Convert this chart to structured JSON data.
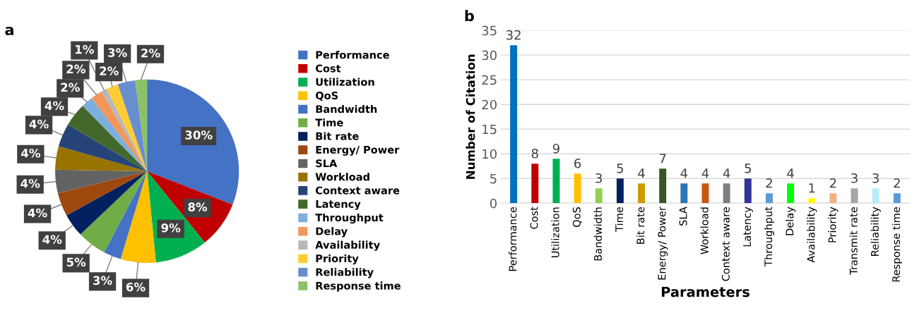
{
  "chart_data": [
    {
      "type": "pie",
      "title": "a",
      "categories": [
        "Performance",
        "Cost",
        "Utilization",
        "QoS",
        "Bandwidth",
        "Time",
        "Bit rate",
        "Energy/ Power",
        "SLA",
        "Workload",
        "Context aware",
        "Latency",
        "Throughput",
        "Delay",
        "Availability",
        "Priority",
        "Reliability",
        "Response time"
      ],
      "values": [
        30,
        8,
        9,
        6,
        3,
        5,
        4,
        4,
        4,
        4,
        4,
        4,
        2,
        2,
        1,
        2,
        3,
        2
      ],
      "value_labels": [
        "30%",
        "8%",
        "9%",
        "6%",
        "3%",
        "5%",
        "4%",
        "4%",
        "4%",
        "4%",
        "4%",
        "4%",
        "2%",
        "2%",
        "1%",
        "2%",
        "3%",
        "2%"
      ],
      "colors": [
        "#4472c4",
        "#c00000",
        "#00b050",
        "#ffc000",
        "#4472c4",
        "#70ad47",
        "#002060",
        "#9e480e",
        "#636363",
        "#997300",
        "#264478",
        "#43682b",
        "#7cafdd",
        "#f1975a",
        "#b7b7b7",
        "#ffcd33",
        "#698ed0",
        "#8cc168"
      ],
      "legend": "right"
    },
    {
      "type": "bar",
      "title": "b",
      "xlabel": "Parameters",
      "ylabel": "Number of Citation",
      "categories": [
        "Performance",
        "Cost",
        "Utilization",
        "QoS",
        "Bandwidth",
        "Time",
        "Bit rate",
        "Energy/ Power",
        "SLA",
        "Workload",
        "Context aware",
        "Latency",
        "Throughput",
        "Delay",
        "Availability",
        "Priority",
        "Transmit rate",
        "Reliability",
        "Response time"
      ],
      "values": [
        32,
        8,
        9,
        6,
        3,
        5,
        4,
        7,
        4,
        4,
        4,
        5,
        2,
        4,
        1,
        2,
        3,
        3,
        2
      ],
      "colors": [
        "#0070c0",
        "#c00000",
        "#00b050",
        "#ffc000",
        "#92d050",
        "#002060",
        "#cc9900",
        "#375623",
        "#2e75b6",
        "#c55a11",
        "#808080",
        "#333399",
        "#5b9bd5",
        "#00ff00",
        "#ffff00",
        "#f4b183",
        "#a6a6a6",
        "#b4ecfa",
        "#5b9bd5"
      ],
      "ylim": [
        0,
        35
      ],
      "yticks": [
        0,
        5,
        10,
        15,
        20,
        25,
        30,
        35
      ],
      "grid": "y",
      "data_labels": true
    }
  ]
}
